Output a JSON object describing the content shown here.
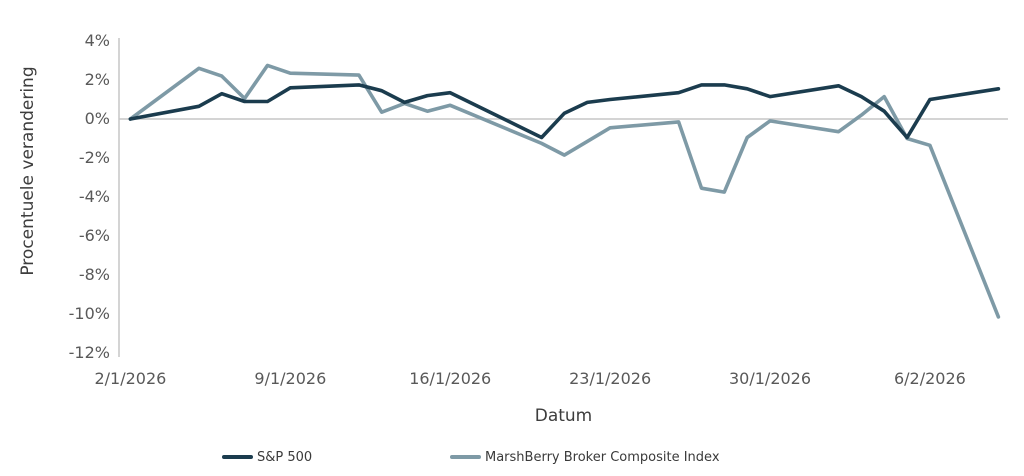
{
  "chart_data": {
    "type": "line",
    "title": "",
    "xlabel": "Datum",
    "ylabel": "Procentuele verandering",
    "ylim": [
      -12,
      4
    ],
    "y_tick_step": 2,
    "y_ticks": [
      {
        "value": 4,
        "label": "4%"
      },
      {
        "value": 2,
        "label": "2%"
      },
      {
        "value": 0,
        "label": "0%"
      },
      {
        "value": -2,
        "label": "-2%"
      },
      {
        "value": -4,
        "label": "-4%"
      },
      {
        "value": -6,
        "label": "-6%"
      },
      {
        "value": -8,
        "label": "-8%"
      },
      {
        "value": -10,
        "label": "-10%"
      },
      {
        "value": -12,
        "label": "-12%"
      }
    ],
    "x_ticks": [
      {
        "day": 0,
        "label": "2/1/2026"
      },
      {
        "day": 7,
        "label": "9/1/2026"
      },
      {
        "day": 14,
        "label": "16/1/2026"
      },
      {
        "day": 21,
        "label": "23/1/2026"
      },
      {
        "day": 28,
        "label": "30/1/2026"
      },
      {
        "day": 35,
        "label": "6/2/2026"
      }
    ],
    "grid": "zero-line-only",
    "legend_position": "bottom",
    "dates": [
      "2/1/2026",
      "5/1/2026",
      "6/1/2026",
      "7/1/2026",
      "8/1/2026",
      "9/1/2026",
      "12/1/2026",
      "13/1/2026",
      "14/1/2026",
      "15/1/2026",
      "16/1/2026",
      "20/1/2026",
      "21/1/2026",
      "22/1/2026",
      "23/1/2026",
      "26/1/2026",
      "27/1/2026",
      "28/1/2026",
      "29/1/2026",
      "30/1/2026",
      "2/2/2026",
      "3/2/2026",
      "4/2/2026",
      "5/2/2026",
      "6/2/2026",
      "9/2/2026"
    ],
    "days": [
      0,
      3,
      4,
      5,
      6,
      7,
      10,
      11,
      12,
      13,
      14,
      18,
      19,
      20,
      21,
      24,
      25,
      26,
      27,
      28,
      31,
      32,
      33,
      34,
      35,
      38
    ],
    "series": [
      {
        "name": "S&P 500",
        "color": "#1b3c4e",
        "values": [
          0.0,
          0.65,
          1.3,
          0.9,
          0.9,
          1.6,
          1.75,
          1.45,
          0.85,
          1.2,
          1.35,
          -0.95,
          0.3,
          0.85,
          1.0,
          1.35,
          1.75,
          1.75,
          1.55,
          1.15,
          1.7,
          1.15,
          0.4,
          -0.95,
          1.0,
          1.55
        ]
      },
      {
        "name": "MarshBerry Broker Composite Index",
        "color": "#7e9aa6",
        "values": [
          0.0,
          2.6,
          2.2,
          1.05,
          2.75,
          2.35,
          2.25,
          0.35,
          0.8,
          0.4,
          0.7,
          -1.25,
          -1.85,
          -1.15,
          -0.45,
          -0.15,
          -3.55,
          -3.75,
          -0.95,
          -0.1,
          -0.65,
          0.2,
          1.15,
          -1.0,
          -1.35,
          -10.15
        ]
      }
    ]
  }
}
